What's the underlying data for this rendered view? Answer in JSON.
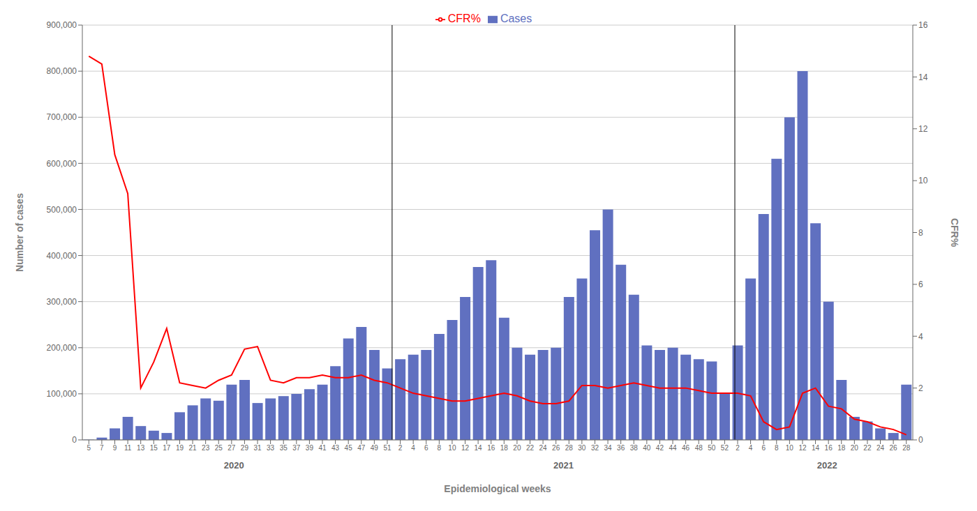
{
  "chart_data": {
    "type": "bar",
    "xlabel": "Epidemiological weeks",
    "ylabel": "Number of cases",
    "y2label": "CFR%",
    "categories": [
      "5",
      "7",
      "9",
      "11",
      "13",
      "15",
      "17",
      "19",
      "21",
      "23",
      "25",
      "27",
      "29",
      "31",
      "33",
      "35",
      "37",
      "39",
      "41",
      "43",
      "45",
      "47",
      "49",
      "51",
      "2",
      "4",
      "6",
      "8",
      "10",
      "12",
      "14",
      "16",
      "18",
      "20",
      "22",
      "24",
      "26",
      "28",
      "30",
      "32",
      "34",
      "36",
      "38",
      "40",
      "42",
      "44",
      "46",
      "48",
      "50",
      "52",
      "2",
      "4",
      "6",
      "8",
      "10",
      "12",
      "14",
      "16",
      "18",
      "20",
      "22",
      "24",
      "26",
      "28"
    ],
    "groups": [
      "2020",
      "2020",
      "2020",
      "2020",
      "2020",
      "2020",
      "2020",
      "2020",
      "2020",
      "2020",
      "2020",
      "2020",
      "2020",
      "2020",
      "2020",
      "2020",
      "2020",
      "2020",
      "2020",
      "2020",
      "2020",
      "2020",
      "2020",
      "2020",
      "2021",
      "2021",
      "2021",
      "2021",
      "2021",
      "2021",
      "2021",
      "2021",
      "2021",
      "2021",
      "2021",
      "2021",
      "2021",
      "2021",
      "2021",
      "2021",
      "2021",
      "2021",
      "2021",
      "2021",
      "2021",
      "2021",
      "2021",
      "2021",
      "2021",
      "2021",
      "2022",
      "2022",
      "2022",
      "2022",
      "2022",
      "2022",
      "2022",
      "2022",
      "2022",
      "2022",
      "2022",
      "2022",
      "2022",
      "2022"
    ],
    "series": [
      {
        "name": "Cases",
        "type": "bar",
        "color": "#6070c0",
        "values": [
          500,
          5000,
          25000,
          50000,
          30000,
          20000,
          15000,
          60000,
          75000,
          90000,
          85000,
          120000,
          130000,
          80000,
          90000,
          95000,
          100000,
          110000,
          120000,
          160000,
          220000,
          245000,
          195000,
          155000,
          175000,
          185000,
          195000,
          230000,
          260000,
          310000,
          375000,
          390000,
          265000,
          200000,
          185000,
          195000,
          200000,
          310000,
          350000,
          455000,
          500000,
          380000,
          315000,
          205000,
          195000,
          200000,
          185000,
          175000,
          170000,
          100000,
          205000,
          350000,
          490000,
          610000,
          700000,
          800000,
          470000,
          300000,
          130000,
          50000,
          40000,
          25000,
          15000,
          120000
        ]
      },
      {
        "name": "CFR%",
        "type": "line",
        "color": "#ff0000",
        "axis": "y2",
        "values": [
          14.8,
          14.5,
          11.0,
          9.5,
          2.0,
          3.0,
          4.3,
          2.2,
          2.1,
          2.0,
          2.3,
          2.5,
          3.5,
          3.6,
          2.3,
          2.2,
          2.4,
          2.4,
          2.5,
          2.4,
          2.4,
          2.5,
          2.3,
          2.2,
          2.0,
          1.8,
          1.7,
          1.6,
          1.5,
          1.5,
          1.6,
          1.7,
          1.8,
          1.7,
          1.5,
          1.4,
          1.4,
          1.5,
          2.1,
          2.1,
          2.0,
          2.1,
          2.2,
          2.1,
          2.0,
          2.0,
          2.0,
          1.9,
          1.8,
          1.8,
          1.8,
          1.7,
          0.7,
          0.4,
          0.5,
          1.8,
          2.0,
          1.3,
          1.2,
          0.8,
          0.7,
          0.5,
          0.4,
          0.2
        ]
      }
    ],
    "ylim": [
      0,
      900000
    ],
    "yticks": [
      0,
      {
        "value": 100000,
        "label": "100,000"
      },
      {
        "value": 200000,
        "label": "200,000"
      },
      {
        "value": 300000,
        "label": "300,000"
      },
      {
        "value": 400000,
        "label": "400,000"
      },
      {
        "value": 500000,
        "label": "500,000"
      },
      {
        "value": 600000,
        "label": "600,000"
      },
      {
        "value": 700000,
        "label": "700,000"
      },
      {
        "value": 800000,
        "label": "800,000"
      },
      {
        "value": 900000,
        "label": "900,000"
      }
    ],
    "y2lim": [
      0,
      16
    ],
    "y2ticks": [
      0,
      2,
      4,
      6,
      8,
      10,
      12,
      14,
      16
    ],
    "grid": true,
    "legend": "top"
  }
}
